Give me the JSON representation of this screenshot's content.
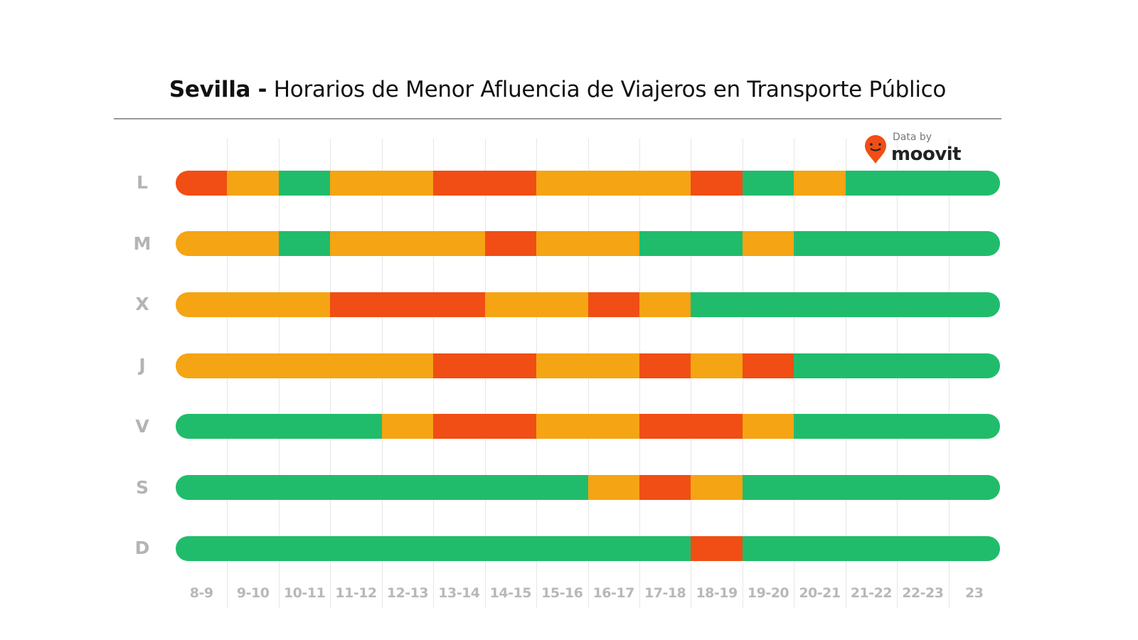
{
  "title": {
    "bold": "Sevilla -",
    "rest": " Horarios de Menor Afluencia de Viajeros en Transporte Público"
  },
  "logo": {
    "by": "Data by",
    "brand": "moovit"
  },
  "chart_data": {
    "type": "heatmap",
    "categories": [
      "8-9",
      "9-10",
      "10-11",
      "11-12",
      "12-13",
      "13-14",
      "14-15",
      "15-16",
      "16-17",
      "17-18",
      "18-19",
      "19-20",
      "20-21",
      "21-22",
      "22-23",
      "23"
    ],
    "rows": [
      "L",
      "M",
      "X",
      "J",
      "V",
      "S",
      "D"
    ],
    "levels": {
      "0": "#20BC6C",
      "1": "#F5A413",
      "2": "#F04E14"
    },
    "values": [
      [
        2,
        1,
        0,
        1,
        1,
        2,
        2,
        1,
        1,
        1,
        2,
        0,
        1,
        0,
        0,
        0
      ],
      [
        1,
        1,
        0,
        1,
        1,
        1,
        2,
        1,
        1,
        0,
        0,
        1,
        0,
        0,
        0,
        0
      ],
      [
        1,
        1,
        1,
        2,
        2,
        2,
        1,
        1,
        2,
        1,
        0,
        0,
        0,
        0,
        0,
        0
      ],
      [
        1,
        1,
        1,
        1,
        1,
        2,
        2,
        1,
        1,
        2,
        1,
        2,
        0,
        0,
        0,
        0
      ],
      [
        0,
        0,
        0,
        0,
        1,
        2,
        2,
        1,
        1,
        2,
        2,
        1,
        0,
        0,
        0,
        0
      ],
      [
        0,
        0,
        0,
        0,
        0,
        0,
        0,
        0,
        1,
        2,
        1,
        0,
        0,
        0,
        0,
        0
      ],
      [
        0,
        0,
        0,
        0,
        0,
        0,
        0,
        0,
        0,
        0,
        2,
        0,
        0,
        0,
        0,
        0
      ]
    ]
  }
}
